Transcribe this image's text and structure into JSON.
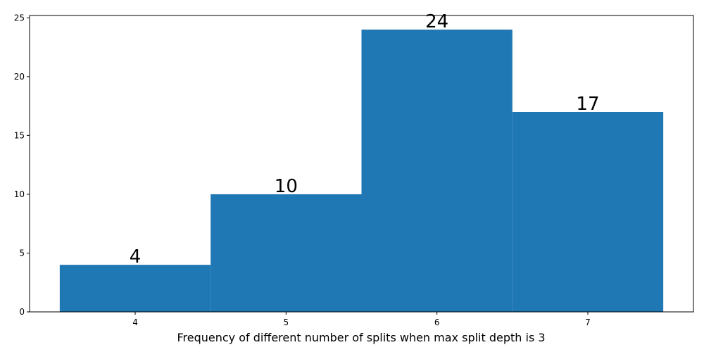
{
  "chart_data": {
    "type": "bar",
    "x": [
      4,
      5,
      6,
      7
    ],
    "values": [
      4,
      10,
      24,
      17
    ],
    "data_labels": [
      "4",
      "10",
      "24",
      "17"
    ],
    "x_ticks": [
      "4",
      "5",
      "6",
      "7"
    ],
    "y_ticks": [
      "0",
      "5",
      "10",
      "15",
      "20",
      "25"
    ],
    "xlabel": "Frequency of different number of splits when max split depth is 3",
    "ylabel": "",
    "xlim": [
      3.3,
      7.7
    ],
    "ylim": [
      0,
      25.2
    ],
    "bar_width": 1,
    "grid": false,
    "colors": {
      "bar": "#1f77b4"
    }
  }
}
